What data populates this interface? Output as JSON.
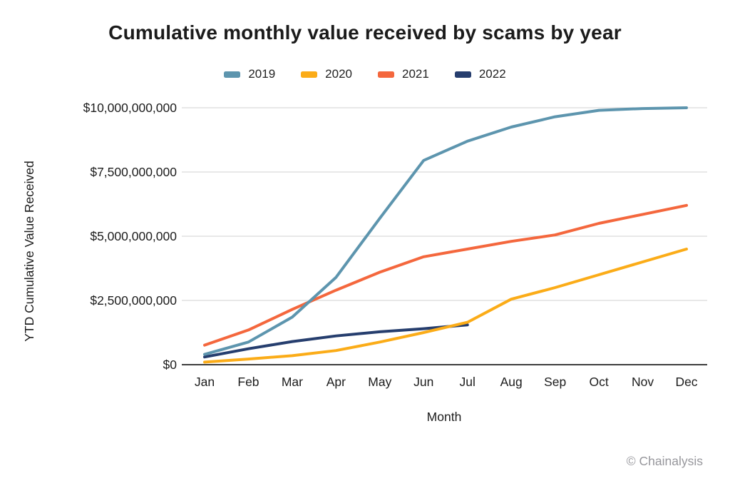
{
  "title": "Cumulative monthly value received by scams by year",
  "watermark": "© Chainalysis",
  "chart_data": {
    "type": "line",
    "title": "Cumulative monthly value received by scams by year",
    "xlabel": "Month",
    "ylabel": "YTD Cumulative Value Received",
    "categories": [
      "Jan",
      "Feb",
      "Mar",
      "Apr",
      "May",
      "Jun",
      "Jul",
      "Aug",
      "Sep",
      "Oct",
      "Nov",
      "Dec"
    ],
    "ylim": [
      0,
      10000000000
    ],
    "grid": true,
    "legend_position": "top",
    "y_ticks": [
      {
        "value": 0,
        "label": "$0"
      },
      {
        "value": 2500000000,
        "label": "$2,500,000,000"
      },
      {
        "value": 5000000000,
        "label": "$5,000,000,000"
      },
      {
        "value": 7500000000,
        "label": "$7,500,000,000"
      },
      {
        "value": 10000000000,
        "label": "$10,000,000,000"
      }
    ],
    "series": [
      {
        "name": "2019",
        "color": "#5d95ae",
        "values": [
          400000000,
          880000000,
          1850000000,
          3400000000,
          5700000000,
          7950000000,
          8700000000,
          9250000000,
          9650000000,
          9900000000,
          9970000000,
          10000000000
        ]
      },
      {
        "name": "2020",
        "color": "#fbac18",
        "values": [
          100000000,
          220000000,
          350000000,
          550000000,
          880000000,
          1250000000,
          1650000000,
          2550000000,
          3000000000,
          3500000000,
          4000000000,
          4500000000
        ]
      },
      {
        "name": "2021",
        "color": "#f4673d",
        "values": [
          760000000,
          1350000000,
          2150000000,
          2900000000,
          3600000000,
          4200000000,
          4500000000,
          4800000000,
          5050000000,
          5500000000,
          5850000000,
          6200000000
        ]
      },
      {
        "name": "2022",
        "color": "#263e6e",
        "values": [
          300000000,
          620000000,
          900000000,
          1120000000,
          1280000000,
          1400000000,
          1550000000
        ]
      }
    ]
  }
}
